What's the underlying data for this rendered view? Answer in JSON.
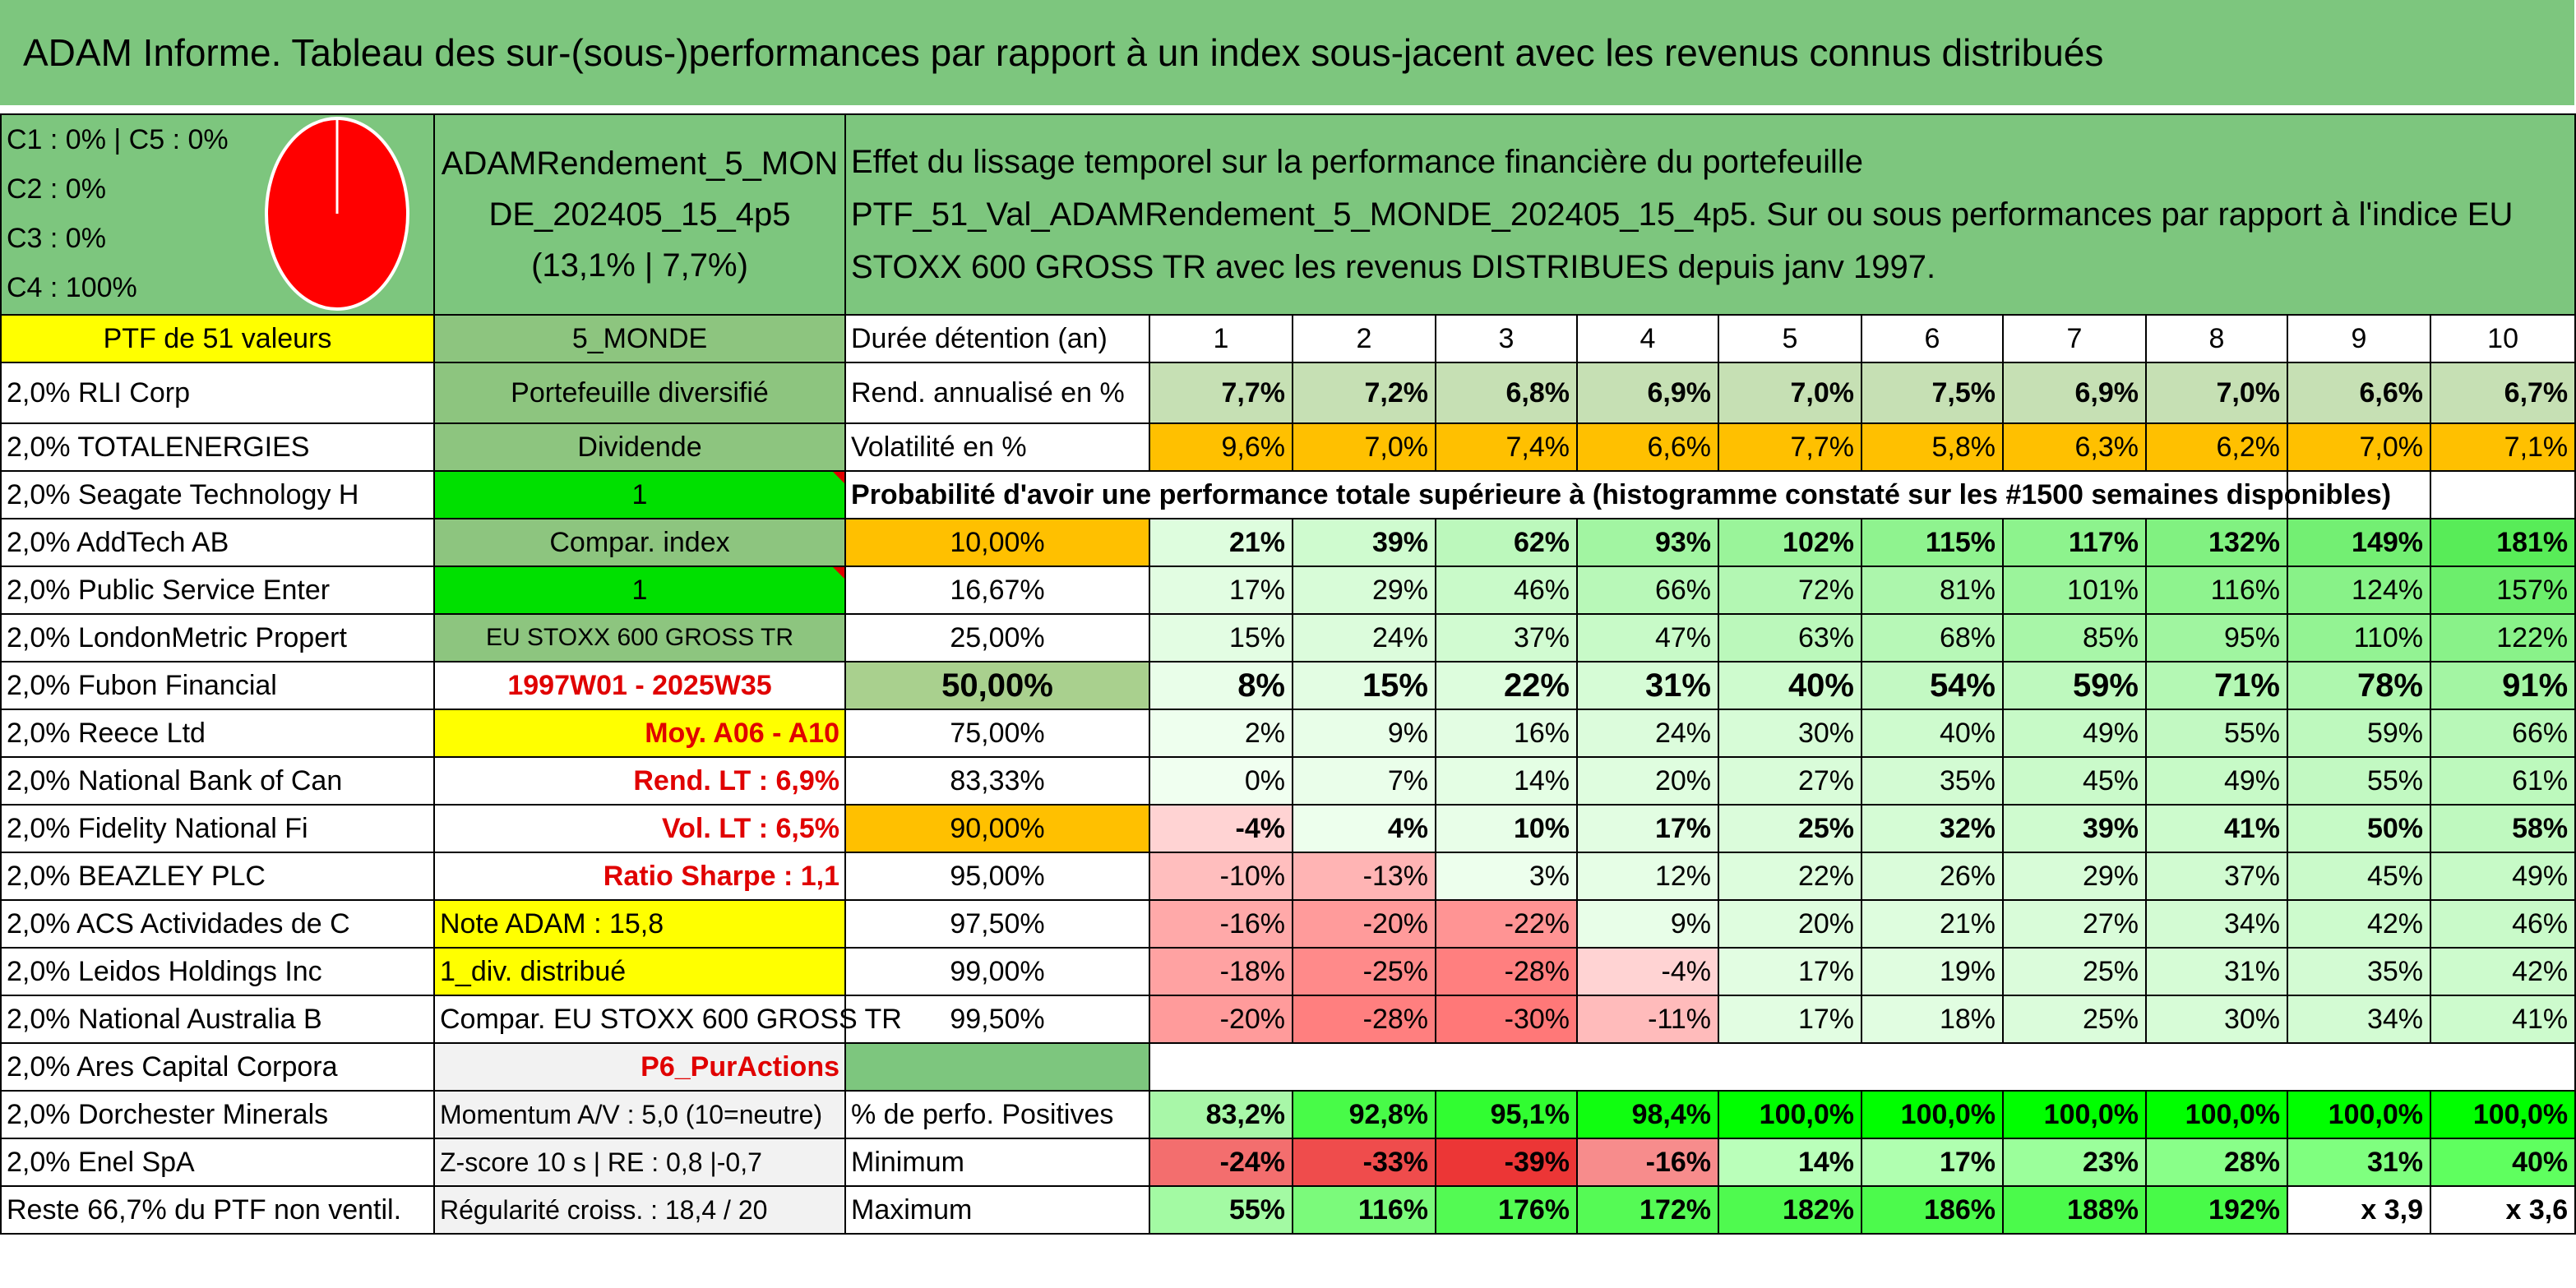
{
  "title": "ADAM Informe. Tableau des sur-(sous-)performances par rapport à un index sous-jacent avec les revenus connus distribués",
  "classes": [
    "C1 : 0% | C5 : 0%",
    "C2 : 0%",
    "C3 : 0%",
    "C4 : 100%"
  ],
  "pie_fill_color": "#ff0000",
  "portfolio_name": "ADAMRendement_5_MONDE_202405_15_4p5",
  "portfolio_stats": "(13,1% | 7,7%)",
  "description": "Effet du lissage temporel sur la performance financière du portefeuille PTF_51_Val_ADAMRendement_5_MONDE_202405_15_4p5. Sur ou sous performances par rapport à l'indice EU STOXX 600 GROSS TR avec les revenus DISTRIBUES depuis janv 1997.",
  "ptf_label": "PTF de 51 valeurs",
  "universe": "5_MONDE",
  "duration_label": "Durée détention (an)",
  "years": [
    "1",
    "2",
    "3",
    "4",
    "5",
    "6",
    "7",
    "8",
    "9",
    "10"
  ],
  "holdings": [
    "2,0% RLI Corp",
    "2,0% TOTALENERGIES",
    "2,0% Seagate Technology H",
    "2,0% AddTech AB",
    "2,0% Public Service Enter",
    "2,0% LondonMetric Propert",
    "2,0% Fubon Financial",
    "2,0% Reece Ltd",
    "2,0% National Bank of Can",
    "2,0% Fidelity National Fi",
    "2,0% BEAZLEY PLC",
    "2,0% ACS Actividades de C",
    "2,0% Leidos Holdings Inc",
    "2,0% National Australia B",
    "2,0% Ares Capital Corpora",
    "2,0% Dorchester Minerals",
    "2,0% Enel SpA",
    "Reste 66,7% du PTF non ventil."
  ],
  "info": {
    "type": "Portefeuille diversifié",
    "style": "Dividende",
    "flag1": "1",
    "compar_index_label": "Compar. index",
    "flag2": "1",
    "index_name": "EU STOXX 600 GROSS TR",
    "period": "1997W01 - 2025W35",
    "avg": "Moy. A06 - A10",
    "rend_lt": "Rend. LT : 6,9%",
    "vol_lt": "Vol. LT : 6,5%",
    "sharpe": "Ratio Sharpe : 1,1",
    "note": "Note ADAM : 15,8",
    "div": "1_div. distribué",
    "compar_full": "Compar. EU STOXX 600 GROSS TR",
    "code": "P6_PurActions",
    "momentum": "Momentum A/V : 5,0 (10=neutre)",
    "zscore": "Z-score 10 s | RE : 0,8 |-0,7",
    "regularity": "Régularité croiss. : 18,4 / 20"
  },
  "rend_label": "Rend. annualisé en %",
  "rend_values": [
    "7,7%",
    "7,2%",
    "6,8%",
    "6,9%",
    "7,0%",
    "7,5%",
    "6,9%",
    "7,0%",
    "6,6%",
    "6,7%"
  ],
  "vol_label": "Volatilité en %",
  "vol_values": [
    "9,6%",
    "7,0%",
    "7,4%",
    "6,6%",
    "7,7%",
    "5,8%",
    "6,3%",
    "6,2%",
    "7,0%",
    "7,1%"
  ],
  "prob_label": "Probabilité d'avoir une performance totale supérieure à (histogramme constaté sur les #1500 semaines disponibles)",
  "prob_rows": [
    {
      "p": "10,00%",
      "v": [
        "21%",
        "39%",
        "62%",
        "93%",
        "102%",
        "115%",
        "117%",
        "132%",
        "149%",
        "181%"
      ]
    },
    {
      "p": "16,67%",
      "v": [
        "17%",
        "29%",
        "46%",
        "66%",
        "72%",
        "81%",
        "101%",
        "116%",
        "124%",
        "157%"
      ]
    },
    {
      "p": "25,00%",
      "v": [
        "15%",
        "24%",
        "37%",
        "47%",
        "63%",
        "68%",
        "85%",
        "95%",
        "110%",
        "122%"
      ]
    },
    {
      "p": "50,00%",
      "v": [
        "8%",
        "15%",
        "22%",
        "31%",
        "40%",
        "54%",
        "59%",
        "71%",
        "78%",
        "91%"
      ]
    },
    {
      "p": "75,00%",
      "v": [
        "2%",
        "9%",
        "16%",
        "24%",
        "30%",
        "40%",
        "49%",
        "55%",
        "59%",
        "66%"
      ]
    },
    {
      "p": "83,33%",
      "v": [
        "0%",
        "7%",
        "14%",
        "20%",
        "27%",
        "35%",
        "45%",
        "49%",
        "55%",
        "61%"
      ]
    },
    {
      "p": "90,00%",
      "v": [
        "-4%",
        "4%",
        "10%",
        "17%",
        "25%",
        "32%",
        "39%",
        "41%",
        "50%",
        "58%"
      ]
    },
    {
      "p": "95,00%",
      "v": [
        "-10%",
        "-13%",
        "3%",
        "12%",
        "22%",
        "26%",
        "29%",
        "37%",
        "45%",
        "49%"
      ]
    },
    {
      "p": "97,50%",
      "v": [
        "-16%",
        "-20%",
        "-22%",
        "9%",
        "20%",
        "21%",
        "27%",
        "34%",
        "42%",
        "46%"
      ]
    },
    {
      "p": "99,00%",
      "v": [
        "-18%",
        "-25%",
        "-28%",
        "-4%",
        "17%",
        "19%",
        "25%",
        "31%",
        "35%",
        "42%"
      ]
    },
    {
      "p": "99,50%",
      "v": [
        "-20%",
        "-28%",
        "-30%",
        "-11%",
        "17%",
        "18%",
        "25%",
        "30%",
        "34%",
        "41%"
      ]
    }
  ],
  "pos_label": "% de perfo. Positives",
  "pos_values": [
    "83,2%",
    "92,8%",
    "95,1%",
    "98,4%",
    "100,0%",
    "100,0%",
    "100,0%",
    "100,0%",
    "100,0%",
    "100,0%"
  ],
  "min_label": "Minimum",
  "min_values": [
    "-24%",
    "-33%",
    "-39%",
    "-16%",
    "14%",
    "17%",
    "23%",
    "28%",
    "31%",
    "40%"
  ],
  "max_label": "Maximum",
  "max_values": [
    "55%",
    "116%",
    "176%",
    "172%",
    "182%",
    "186%",
    "188%",
    "192%",
    "x 3,9",
    "x 3,6"
  ]
}
